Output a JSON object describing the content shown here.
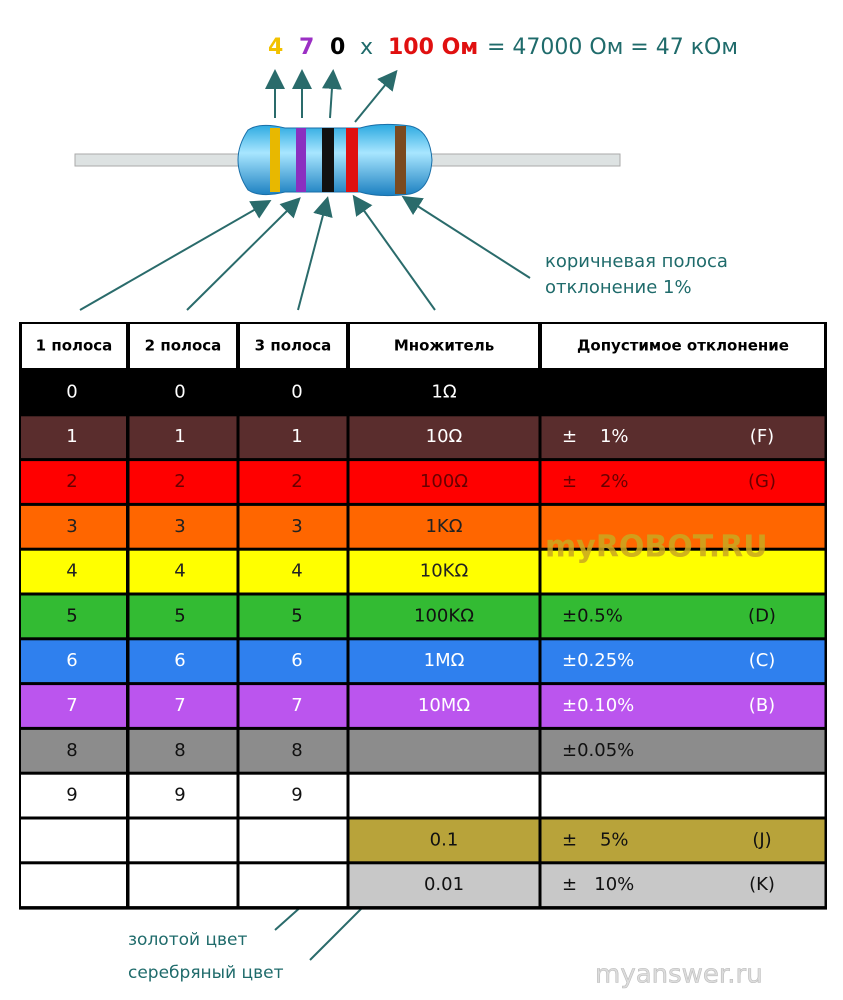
{
  "formula": {
    "digit1": "4",
    "digit2": "7",
    "digit3": "0",
    "times": "x",
    "multiplier": "100 Ом",
    "result": "= 47000 Ом = 47 кОм"
  },
  "annotation": {
    "line1": "коричневая полоса",
    "line2": "отклонение 1%"
  },
  "table": {
    "headers": [
      "1 полоса",
      "2 полоса",
      "3 полоса",
      "Множитель",
      "Допустимое отклонение"
    ],
    "rows": [
      {
        "color": "#000000",
        "text_color": "#ffffff",
        "band": "0",
        "multiplier": "1Ω"
      },
      {
        "color": "#5a2d2d",
        "text_color": "#ffffff",
        "band": "1",
        "multiplier": "10Ω",
        "tolerance": "±    1%",
        "code": "(F)"
      },
      {
        "color": "#ff0000",
        "text_color": "#6a0000",
        "band": "2",
        "multiplier": "100Ω",
        "tolerance": "±    2%",
        "code": "(G)"
      },
      {
        "color": "#ff6600",
        "text_color": "#222222",
        "band": "3",
        "multiplier": "1KΩ"
      },
      {
        "color": "#ffff00",
        "text_color": "#222222",
        "band": "4",
        "multiplier": "10KΩ"
      },
      {
        "color": "#33bb33",
        "text_color": "#111111",
        "band": "5",
        "multiplier": "100KΩ",
        "tolerance": "±0.5%",
        "code": "(D)"
      },
      {
        "color": "#2f80ee",
        "text_color": "#ffffff",
        "band": "6",
        "multiplier": "1MΩ",
        "tolerance": "±0.25%",
        "code": "(C)"
      },
      {
        "color": "#bb55ee",
        "text_color": "#ffffff",
        "band": "7",
        "multiplier": "10MΩ",
        "tolerance": "±0.10%",
        "code": "(B)"
      },
      {
        "color": "#8c8c8c",
        "text_color": "#111111",
        "band": "8",
        "tolerance": "±0.05%"
      },
      {
        "color": "#ffffff",
        "text_color": "#111111",
        "band": "9"
      },
      {
        "color": "#b8a33a",
        "text_color": "#111111",
        "multiplier": "0.1",
        "tolerance": "±    5%",
        "code": "(J)"
      },
      {
        "color": "#c8c8c8",
        "text_color": "#111111",
        "multiplier": "0.01",
        "tolerance": "±   10%",
        "code": "(K)"
      }
    ]
  },
  "notes": {
    "gold": "золотой цвет",
    "silver": "серебряный цвет"
  },
  "watermarks": {
    "table": "myROBOT.RU",
    "corner": "myanswer.ru"
  }
}
